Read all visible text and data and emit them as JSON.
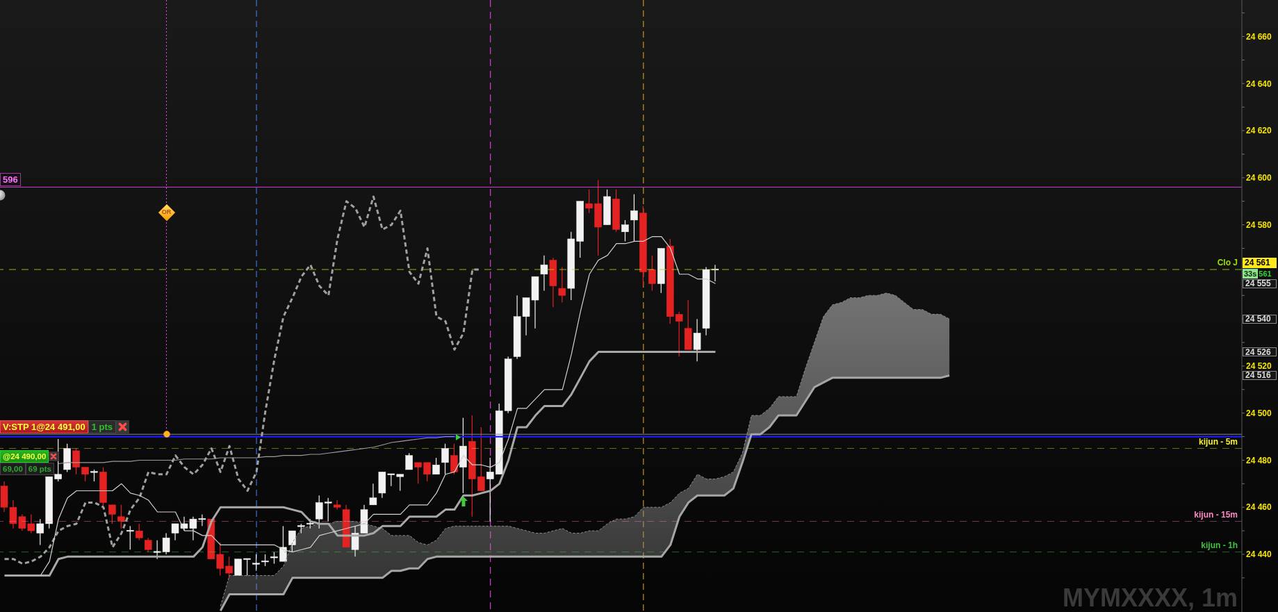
{
  "chart_data": {
    "type": "candlestick",
    "tick_labels": "y",
    "categories": [
      null,
      null,
      null,
      null,
      null,
      null,
      null,
      null,
      null,
      null,
      null,
      null,
      null,
      null,
      null,
      null,
      null,
      null,
      null,
      null,
      null,
      null,
      null,
      null,
      null,
      null,
      null,
      null,
      null,
      null,
      null,
      null,
      null,
      null,
      null,
      null,
      null,
      null,
      null,
      null,
      null,
      null,
      null,
      null,
      null,
      null,
      null,
      null,
      null,
      null,
      null,
      null,
      null,
      null,
      null,
      null,
      null,
      null,
      null,
      null,
      null,
      null,
      null,
      null,
      null,
      null,
      null,
      null,
      null,
      null,
      null,
      null,
      null,
      null,
      null,
      null,
      null,
      null,
      null,
      null,
      null,
      null,
      null,
      null,
      null,
      null,
      null,
      null,
      null,
      null,
      null,
      null,
      null,
      null,
      null,
      null,
      null,
      null,
      null,
      null,
      null,
      null,
      null,
      null,
      null,
      null,
      null,
      null,
      null,
      null,
      null,
      null,
      null,
      null,
      null,
      null,
      null,
      null,
      null,
      null,
      null,
      null,
      null,
      null,
      null,
      null,
      null,
      null,
      null,
      null,
      null,
      null,
      null,
      null,
      null,
      null,
      null,
      null
    ],
    "ohlc": [
      [
        24469,
        24471,
        24458,
        24460
      ],
      [
        24460,
        24463,
        24451,
        24453
      ],
      [
        24456,
        24457,
        24450,
        24451
      ],
      [
        24453,
        24457,
        24449,
        24450
      ],
      [
        24449,
        24455,
        24444,
        24453
      ],
      [
        24453,
        24473,
        24451,
        24473
      ],
      [
        24472,
        24489,
        24471,
        24474
      ],
      [
        24476,
        24487,
        24475,
        24485
      ],
      [
        24484,
        24485,
        24474,
        24477
      ],
      [
        24477,
        24477,
        24471,
        24474
      ],
      [
        24475,
        24476,
        24471,
        24475
      ],
      [
        24475,
        24477,
        24460,
        24462
      ],
      [
        24461,
        24461,
        24453,
        24457
      ],
      [
        24456,
        24461,
        24451,
        24454
      ],
      [
        24450,
        24452,
        24442,
        24450
      ],
      [
        24450,
        24453,
        24446,
        24447
      ],
      [
        24446,
        24447,
        24441,
        24442
      ],
      [
        24441,
        24446,
        24438,
        24441
      ],
      [
        24441,
        24449,
        24440,
        24447
      ],
      [
        24449,
        24453,
        24446,
        24453
      ],
      [
        24451,
        24456,
        24450,
        24453
      ],
      [
        24451,
        24456,
        24446,
        24455
      ],
      [
        24455,
        24457,
        24452,
        24455
      ],
      [
        24455,
        24455,
        24438,
        24438
      ],
      [
        24440,
        24445,
        24431,
        24434
      ],
      [
        24435,
        24439,
        24430,
        24432
      ],
      [
        24431,
        24438,
        24431,
        24438
      ],
      [
        24438,
        24438,
        24431,
        24438
      ],
      [
        24436,
        24440,
        24433,
        24436
      ],
      [
        24437,
        24440,
        24435,
        24437
      ],
      [
        24438.5,
        24441,
        24436,
        24439
      ],
      [
        24437,
        24452,
        24437,
        24443
      ],
      [
        24444,
        24450,
        24441,
        24450
      ],
      [
        24452,
        24453,
        24449,
        24452
      ],
      [
        24453,
        24455,
        24451,
        24453
      ],
      [
        24455,
        24465,
        24451,
        24462
      ],
      [
        24462,
        24464,
        24454,
        24462
      ],
      [
        24461,
        24463,
        24459,
        24460
      ],
      [
        24459,
        24461,
        24443,
        24443
      ],
      [
        24442,
        24452,
        24439,
        24449
      ],
      [
        24449,
        24461,
        24449,
        24459
      ],
      [
        24461,
        24470,
        24461,
        24464
      ],
      [
        24466,
        24475,
        24464,
        24475
      ],
      [
        24474,
        24474,
        24469,
        24474
      ],
      [
        24473,
        24474,
        24467,
        24474
      ],
      [
        24476,
        24483,
        24476,
        24482
      ],
      [
        24479,
        24479,
        24470,
        24477
      ],
      [
        24479,
        24479,
        24471,
        24474
      ],
      [
        24474,
        24481,
        24474,
        24478
      ],
      [
        24479,
        24487,
        24474,
        24485
      ],
      [
        24482,
        24487,
        24474,
        24475
      ],
      [
        24477,
        24498,
        24466,
        24486
      ],
      [
        24488,
        24499,
        24456,
        24472
      ],
      [
        24473,
        24494,
        24467,
        24467
      ],
      [
        24472,
        24481,
        24454,
        24475
      ],
      [
        24474,
        24504,
        24474,
        24501
      ],
      [
        24501,
        24524,
        24500,
        24523
      ],
      [
        24524,
        24550,
        24523,
        24541
      ],
      [
        24541,
        24549,
        24533,
        24549
      ],
      [
        24548,
        24558,
        24536,
        24558
      ],
      [
        24559,
        24567,
        24552,
        24563
      ],
      [
        24565,
        24566,
        24545,
        24554
      ],
      [
        24553,
        24562,
        24547,
        24550
      ],
      [
        24553,
        24577,
        24548,
        24574
      ],
      [
        24573,
        24590,
        24566,
        24590
      ],
      [
        24589,
        24595,
        24585,
        24587
      ],
      [
        24589,
        24599,
        24567,
        24579
      ],
      [
        24580,
        24595,
        24580,
        24592
      ],
      [
        24591,
        24595,
        24577,
        24578
      ],
      [
        24577,
        24582,
        24573,
        24580
      ],
      [
        24582,
        24593,
        24573,
        24586
      ],
      [
        24585,
        24588,
        24554,
        24560
      ],
      [
        24561,
        24567,
        24552,
        24555
      ],
      [
        24555,
        24570,
        24551,
        24570
      ],
      [
        24571,
        24574,
        24538,
        24541
      ],
      [
        24542,
        24543,
        24524,
        24539
      ],
      [
        24536,
        24548,
        24527,
        24527
      ],
      [
        24527,
        24540,
        24522,
        24534
      ],
      [
        24536,
        24562,
        24533,
        24561
      ],
      [
        24561,
        24563,
        24556,
        24561
      ],
      null,
      null,
      null,
      null,
      null,
      null,
      null,
      null,
      null,
      null,
      null,
      null,
      null,
      null,
      null,
      null,
      null,
      null,
      null,
      null,
      null,
      null,
      null,
      null,
      null,
      null,
      null,
      null,
      null,
      null,
      null,
      null,
      null,
      null,
      null,
      null,
      null,
      null,
      null,
      null,
      null,
      null,
      null,
      null,
      null,
      null,
      null,
      null,
      null,
      null,
      null,
      null,
      null,
      null,
      null,
      null,
      null,
      null
    ],
    "colors": [
      "#e52222",
      "#e52222",
      "#e52222",
      "#e52222",
      "#f2f2f2",
      "#f2f2f2",
      "#f2f2f2",
      "#f2f2f2",
      "#e52222",
      "#e52222",
      "#f2f2f2",
      "#e52222",
      "#e52222",
      "#e52222",
      "#f2f2f2",
      "#e52222",
      "#e52222",
      "#f2f2f2",
      "#f2f2f2",
      "#f2f2f2",
      "#f2f2f2",
      "#f2f2f2",
      "#f2f2f2",
      "#e52222",
      "#e52222",
      "#e52222",
      "#f2f2f2",
      "#f2f2f2",
      "#f2f2f2",
      "#f2f2f2",
      "#f2f2f2",
      "#f2f2f2",
      "#f2f2f2",
      "#f2f2f2",
      "#f2f2f2",
      "#f2f2f2",
      "#f2f2f2",
      "#e52222",
      "#e52222",
      "#f2f2f2",
      "#f2f2f2",
      "#f2f2f2",
      "#f2f2f2",
      "#f2f2f2",
      "#f2f2f2",
      "#f2f2f2",
      "#e52222",
      "#e52222",
      "#f2f2f2",
      "#f2f2f2",
      "#e52222",
      "#f2f2f2",
      "#e52222",
      "#e52222",
      "#f2f2f2",
      "#f2f2f2",
      "#f2f2f2",
      "#f2f2f2",
      "#f2f2f2",
      "#f2f2f2",
      "#f2f2f2",
      "#e52222",
      "#e52222",
      "#f2f2f2",
      "#f2f2f2",
      "#e52222",
      "#e52222",
      "#f2f2f2",
      "#e52222",
      "#f2f2f2",
      "#f2f2f2",
      "#e52222",
      "#e52222",
      "#f2f2f2",
      "#e52222",
      "#e52222",
      "#e52222",
      "#f2f2f2",
      "#f2f2f2",
      "#f2f2f2",
      null,
      null,
      null,
      null,
      null,
      null,
      null,
      null,
      null,
      null,
      null,
      null,
      null,
      null,
      null,
      null,
      null,
      null,
      null,
      null,
      null,
      null,
      null,
      null,
      null,
      null,
      null,
      null,
      null,
      null,
      null,
      null,
      null,
      null,
      null,
      null,
      null,
      null,
      null,
      null,
      null,
      null,
      null,
      null,
      null,
      null,
      null,
      null,
      null,
      null,
      null,
      null,
      null,
      null,
      null,
      null,
      null,
      null
    ],
    "series": [
      {
        "type": "line",
        "color": "#8c8c8c",
        "line_style": "dashed",
        "values": [
          null,
          null,
          null,
          null,
          null,
          null,
          null,
          null,
          null,
          null,
          null,
          null,
          null,
          null,
          null,
          null,
          null,
          null,
          null,
          null,
          null,
          null,
          null,
          null,
          24418,
          24431,
          24431,
          24431,
          24431,
          24431,
          24431,
          24435,
          24445,
          24451,
          24452,
          24453,
          24453,
          24454,
          24454,
          24454,
          24453,
          24452,
          24451,
          24448,
          24448,
          24448,
          24445,
          24444,
          24446,
          24451,
          24452,
          24452,
          24452,
          24452,
          24452,
          24452,
          24452,
          24451,
          24450,
          24449,
          24449,
          24450,
          24451,
          24449,
          24449,
          24450,
          24450,
          24453,
          24455,
          24455,
          24456,
          24460,
          24460,
          24460,
          24462,
          24466,
          24468,
          24474,
          24472,
          24472,
          24473,
          24475,
          24483,
          24499,
          24499,
          24502,
          24507,
          24507,
          24507,
          24519,
          24530,
          24541,
          24546,
          24547,
          24549,
          24549,
          24550,
          24550,
          24551,
          24550,
          24547,
          24544,
          24544,
          24542,
          24542,
          24540,
          null,
          null,
          null,
          null,
          null,
          null,
          null,
          null,
          null,
          null,
          null,
          null,
          null,
          null,
          null,
          null,
          null,
          null,
          null,
          null,
          null,
          null,
          null,
          null,
          null,
          null,
          null,
          null,
          null,
          null,
          null,
          null
        ],
        "lower": [
          null,
          null,
          null,
          null,
          null,
          null,
          null,
          null,
          null,
          null,
          null,
          null,
          null,
          null,
          null,
          null,
          null,
          null,
          null,
          null,
          null,
          null,
          null,
          null,
          24416,
          24423,
          24423,
          24423,
          24423,
          24423,
          24423,
          24423,
          24430,
          24430,
          24430,
          24430,
          24430,
          24430,
          24430,
          24430,
          24430,
          24430,
          24430,
          24433,
          24433,
          24434,
          24434,
          24438,
          24439,
          24439,
          24439,
          24439,
          24439,
          24439,
          24439,
          24439,
          24439,
          24439,
          24439,
          24439,
          24439,
          24439,
          24439,
          24439,
          24439,
          24439,
          24439,
          24439,
          24439,
          24439,
          24439,
          24439,
          24439,
          24439,
          24444,
          24456,
          24462,
          24465,
          24465,
          24465,
          24465,
          24468,
          24479,
          24491,
          24491,
          24494,
          24499,
          24499,
          24499,
          24505,
          24511,
          24513,
          24515,
          24515,
          24515,
          24515,
          24515,
          24515,
          24515,
          24515,
          24515,
          24515,
          24515,
          24515,
          24515,
          24516,
          null,
          null,
          null,
          null,
          null,
          null,
          null,
          null,
          null,
          null,
          null,
          null,
          null,
          null,
          null,
          null,
          null,
          null,
          null,
          null,
          null,
          null,
          null,
          null,
          null,
          null,
          null,
          null,
          null,
          null,
          null,
          null
        ],
        "upper": [
          null,
          null,
          null,
          null,
          null,
          null,
          null,
          null,
          null,
          null,
          null,
          null,
          null,
          null,
          null,
          null,
          null,
          null,
          null,
          null,
          null,
          null,
          null,
          null,
          24418,
          24431,
          24431,
          24431,
          24431,
          24431,
          24431,
          24435,
          24445,
          24451,
          24452,
          24453,
          24453,
          24454,
          24454,
          24454,
          24453,
          24452,
          24451,
          24448,
          24448,
          24448,
          24445,
          24444,
          24446,
          24451,
          24452,
          24452,
          24452,
          24452,
          24452,
          24452,
          24452,
          24451,
          24450,
          24449,
          24449,
          24450,
          24451,
          24449,
          24449,
          24450,
          24450,
          24453,
          24455,
          24455,
          24456,
          24460,
          24460,
          24460,
          24462,
          24466,
          24468,
          24474,
          24472,
          24472,
          24473,
          24475,
          24483,
          24499,
          24499,
          24502,
          24507,
          24507,
          24507,
          24519,
          24530,
          24541,
          24546,
          24547,
          24549,
          24549,
          24550,
          24550,
          24551,
          24550,
          24547,
          24544,
          24544,
          24542,
          24542,
          24540,
          null,
          null,
          null,
          null,
          null,
          null,
          null,
          null,
          null,
          null,
          null,
          null,
          null,
          null,
          null,
          null,
          null,
          null,
          null,
          null,
          null,
          null,
          null,
          null,
          null,
          null,
          null,
          null,
          null,
          null,
          null,
          null
        ]
      },
      {
        "type": "line",
        "color": "#a6a6a6",
        "values": [
          null,
          null,
          null,
          null,
          null,
          null,
          null,
          null,
          null,
          null,
          null,
          null,
          null,
          null,
          null,
          null,
          null,
          null,
          null,
          null,
          null,
          null,
          null,
          null,
          24416,
          24423,
          24423,
          24423,
          24423,
          24423,
          24423,
          24423,
          24430,
          24430,
          24430,
          24430,
          24430,
          24430,
          24430,
          24430,
          24430,
          24430,
          24430,
          24433,
          24433,
          24434,
          24434,
          24438,
          24439,
          24439,
          24439,
          24439,
          24439,
          24439,
          24439,
          24439,
          24439,
          24439,
          24439,
          24439,
          24439,
          24439,
          24439,
          24439,
          24439,
          24439,
          24439,
          24439,
          24439,
          24439,
          24439,
          24439,
          24439,
          24439,
          24444,
          24456,
          24462,
          24465,
          24465,
          24465,
          24465,
          24468,
          24479,
          24491,
          24491,
          24494,
          24499,
          24499,
          24499,
          24505,
          24511,
          24513,
          24515,
          24515,
          24515,
          24515,
          24515,
          24515,
          24515,
          24515,
          24515,
          24515,
          24515,
          24515,
          24515,
          24516,
          null,
          null,
          null,
          null,
          null,
          null,
          null,
          null,
          null,
          null,
          null,
          null,
          null,
          null,
          null,
          null,
          null,
          null,
          null,
          null,
          null,
          null,
          null,
          null,
          null,
          null,
          null,
          null,
          null,
          null,
          null,
          null
        ]
      },
      {
        "type": "line",
        "color": "#9c9c9c",
        "values": [
          null,
          null,
          null,
          null,
          null,
          null,
          24478.5,
          24479,
          24479,
          24479,
          24479,
          24479,
          24479.5,
          24479.5,
          24479.5,
          24480,
          24480,
          24480,
          24480,
          24480,
          24480.5,
          24480.5,
          24480.5,
          24480.5,
          24481,
          24481,
          24481,
          24481,
          24481,
          24481.5,
          24481.5,
          24482,
          24482,
          24482,
          24482.5,
          24482.5,
          24483,
          24483.5,
          24484,
          24484.5,
          24485,
          24485.5,
          24486.5,
          24487.5,
          24488,
          24488.5,
          24489,
          24489.5,
          24489.5,
          24490,
          24490,
          null,
          null,
          null,
          null,
          null,
          null,
          null,
          null,
          null,
          null,
          null,
          null,
          null,
          null,
          null,
          null,
          null,
          null,
          null,
          null,
          null,
          null,
          null,
          null,
          null,
          null,
          null,
          null,
          null,
          null,
          null,
          null,
          null,
          null,
          null,
          null,
          null,
          null,
          null,
          null,
          null,
          null,
          null,
          null,
          null,
          null,
          null,
          null,
          null,
          null,
          null,
          null,
          null,
          null,
          null,
          null,
          null,
          null,
          null,
          null,
          null,
          null,
          null,
          null,
          null,
          null,
          null,
          null,
          null,
          null,
          null,
          null,
          null,
          null,
          null,
          null,
          null,
          null,
          null,
          null,
          null,
          null,
          null,
          null,
          null,
          null,
          null
        ]
      },
      {
        "type": "line",
        "color": "#a0a0a0",
        "line_style": "dashed",
        "values": [
          24438,
          24438,
          24436,
          24437,
          24439,
          24443,
          24450,
          24452,
          24453,
          24462,
          24462,
          24460,
          24443,
          24449,
          24459,
          24464,
          24475,
          24474,
          24474,
          24482,
          24477,
          24474,
          24478,
          24485,
          24475,
          24486,
          24472,
          24467,
          24475,
          24501,
          24523,
          24541,
          24549,
          24558,
          24563,
          24554,
          24550,
          24574,
          24590,
          24587,
          24579,
          24592,
          24578,
          24580,
          24586,
          24560,
          24555,
          24570,
          24541,
          24539,
          24527,
          24534,
          24561,
          24561,
          null,
          null,
          null,
          null,
          null,
          null,
          null,
          null,
          null,
          null,
          null,
          null,
          null,
          null,
          null,
          null,
          null,
          null,
          null,
          null,
          null,
          null,
          null,
          null,
          null,
          null,
          null,
          null,
          null,
          null,
          null,
          null,
          null,
          null,
          null,
          null,
          null,
          null,
          null,
          null,
          null,
          null,
          null,
          null,
          null,
          null,
          null,
          null,
          null,
          null,
          null,
          null,
          null,
          null,
          null,
          null,
          null,
          null,
          null,
          null,
          null,
          null,
          null,
          null,
          null,
          null,
          null,
          null,
          null,
          null,
          null,
          null,
          null,
          null,
          null,
          null,
          null,
          null,
          null,
          null,
          null,
          null,
          null,
          null
        ]
      },
      {
        "type": "line",
        "color": "#a8a8a8",
        "values": [
          24431,
          24431,
          24431,
          24431,
          24431,
          24431,
          24438,
          24439,
          24439,
          24439,
          24439,
          24439,
          24439,
          24439,
          24439,
          24439,
          24439,
          24439,
          24439,
          24439,
          24439,
          24439,
          24443,
          24454,
          24460,
          24460,
          24460,
          24460,
          24460,
          24460,
          24460,
          24460,
          24459,
          24458,
          24454,
          24453,
          24453,
          24448,
          24448,
          24448,
          24448,
          24449,
          24452,
          24452,
          24452,
          24456,
          24456,
          24456,
          24456,
          24459,
          24459,
          24465,
          24465,
          24466,
          24467,
          24470,
          24480,
          24494,
          24494,
          24499,
          24503,
          24503,
          24503,
          24508,
          24515,
          24522,
          24526,
          24526,
          24526,
          24526,
          24526,
          24526,
          24526,
          24526,
          24526,
          24526,
          24526,
          24526,
          24526,
          24526,
          null,
          null,
          null,
          null,
          null,
          null,
          null,
          null,
          null,
          null,
          null,
          null,
          null,
          null,
          null,
          null,
          null,
          null,
          null,
          null,
          null,
          null,
          null,
          null,
          null,
          null,
          null,
          null,
          null,
          null,
          null,
          null,
          null,
          null,
          null,
          null,
          null,
          null,
          null,
          null,
          null,
          null,
          null,
          null,
          null,
          null,
          null,
          null,
          null,
          null,
          null,
          null,
          null,
          null,
          null,
          null,
          null,
          null
        ]
      },
      {
        "type": "line",
        "color": "#d2d2d2",
        "values": [
          null,
          null,
          null,
          null,
          24431,
          24437,
          24455,
          24464,
          24467,
          24467,
          24467,
          24467,
          24467,
          24470,
          24466,
          24465,
          24463,
          24458,
          24458,
          24458,
          24450,
          24450,
          24448,
          24448,
          24444,
          24444,
          24444,
          24444,
          24444,
          24444,
          24444,
          24442,
          24441,
          24442,
          24443,
          24448,
          24449,
          24450,
          24451,
          24452,
          24453,
          24457,
          24457,
          24457,
          24457,
          24461,
          24461,
          24461,
          24466,
          24474,
          24475,
          24482,
          24478,
          24478,
          24477,
          24479,
          24489,
          24502,
          24502,
          24506,
          24510,
          24510,
          24510,
          24525,
          24543,
          24559,
          24565,
          24567,
          24572,
          24572,
          24573,
          24573,
          24575,
          24575,
          24570,
          24559,
          24559,
          24557,
          24557,
          24555,
          null,
          null,
          null,
          null,
          null,
          null,
          null,
          null,
          null,
          null,
          null,
          null,
          null,
          null,
          null,
          null,
          null,
          null,
          null,
          null,
          null,
          null,
          null,
          null,
          null,
          null,
          null,
          null,
          null,
          null,
          null,
          null,
          null,
          null,
          null,
          null,
          null,
          null,
          null,
          null,
          null,
          null,
          null,
          null,
          null,
          null,
          null,
          null,
          null,
          null,
          null,
          null,
          null,
          null,
          null,
          null,
          null,
          null
        ]
      }
    ],
    "ylim": [
      24415.5,
      24675.5
    ],
    "yticks": [
      {
        "value": 24430,
        "label": null
      },
      {
        "value": 24440,
        "label": "24 440"
      },
      {
        "value": 24450,
        "label": null
      },
      {
        "value": 24460,
        "label": "24 460"
      },
      {
        "value": 24470,
        "label": null
      },
      {
        "value": 24480,
        "label": "24 480"
      },
      {
        "value": 24490,
        "label": null
      },
      {
        "value": 24500,
        "label": "24 500"
      },
      {
        "value": 24510,
        "label": null
      },
      {
        "value": 24520,
        "label": "24 520"
      },
      {
        "value": 24530,
        "label": null
      },
      {
        "value": 24540,
        "label": null
      },
      {
        "value": 24550,
        "label": null
      },
      {
        "value": 24560,
        "label": null
      },
      {
        "value": 24570,
        "label": null
      },
      {
        "value": 24580,
        "label": "24 580"
      },
      {
        "value": 24590,
        "label": null
      },
      {
        "value": 24600,
        "label": "24 600"
      },
      {
        "value": 24610,
        "label": null
      },
      {
        "value": 24620,
        "label": "24 620"
      },
      {
        "value": 24630,
        "label": null
      },
      {
        "value": 24640,
        "label": "24 640"
      },
      {
        "value": 24650,
        "label": null
      },
      {
        "value": 24660,
        "label": "24 660"
      },
      {
        "value": 24670,
        "label": null
      }
    ],
    "ref_lines": [
      {
        "axis": "y",
        "value": 24596,
        "color": "#d040d0"
      },
      {
        "axis": "y",
        "value": 24561,
        "label": "Clo J",
        "color": "#9be000",
        "line_style": "dashed"
      },
      {
        "axis": "y",
        "value": 24491,
        "label": "V:STP 1@24 491,00",
        "color": "#8a8a8a"
      },
      {
        "axis": "y",
        "value": 24490,
        "label": "@24 490,00",
        "color": "#1a1aff"
      },
      {
        "axis": "y",
        "value": 24485,
        "label": "kijun - 5m",
        "color": "#f2f230",
        "line_style": "dashed"
      },
      {
        "axis": "y",
        "value": 24454,
        "label": "kijun - 15m",
        "color": "#ff88c8",
        "line_style": "dashed"
      },
      {
        "axis": "y",
        "value": 24441,
        "label": "kijun - 1h",
        "color": "#3cc83c",
        "line_style": "dashed"
      }
    ],
    "annotations": [
      "596",
      "24 561",
      "24 555",
      "24 540",
      "24 526",
      "24 516",
      "1 pts",
      "69,00",
      "69 pts",
      "33s",
      "561",
      "OR",
      "MYMXXXX, 1m"
    ]
  }
}
